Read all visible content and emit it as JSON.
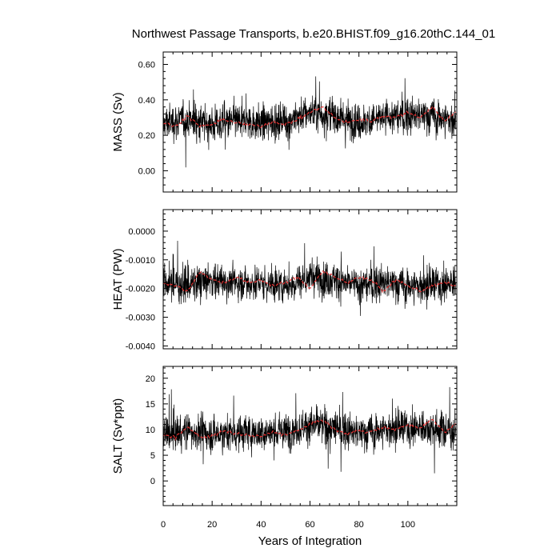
{
  "title": "Northwest Passage Transports, b.e20.BHIST.f09_g16.20thC.144_01",
  "chart_data": {
    "type": "line",
    "title": "Northwest Passage Transports, b.e20.BHIST.f09_g16.20thC.144_01",
    "xlabel": "Years of Integration",
    "xlim": [
      0,
      120
    ],
    "x_ticks": [
      0,
      20,
      40,
      60,
      80,
      100
    ],
    "x_tick_labels": [
      "0",
      "20",
      "40",
      "60",
      "80",
      "100"
    ],
    "grid": false,
    "legend": "none",
    "colors": {
      "monthly": "#000000",
      "smoothed": "#e03030"
    },
    "panels": [
      {
        "ylabel": "MASS (Sv)",
        "ylim": [
          -0.12,
          0.67
        ],
        "y_ticks": [
          0.0,
          0.2,
          0.4,
          0.6
        ],
        "y_tick_labels": [
          "0.00",
          "0.20",
          "0.40",
          "0.60"
        ],
        "series": [
          {
            "style": "monthly",
            "x": [
              0,
              10,
              20,
              30,
              40,
              50,
              60,
              70,
              80,
              90,
              100,
              110,
              119
            ],
            "y": [
              0.27,
              0.29,
              0.26,
              0.28,
              0.27,
              0.28,
              0.33,
              0.31,
              0.27,
              0.3,
              0.31,
              0.31,
              0.28
            ],
            "y_min_approx": -0.12,
            "y_max_approx": 0.67
          },
          {
            "style": "smoothed",
            "x": [
              0,
              5,
              10,
              15,
              20,
              25,
              30,
              35,
              40,
              45,
              50,
              55,
              60,
              65,
              70,
              75,
              80,
              85,
              90,
              95,
              100,
              105,
              110,
              115,
              119
            ],
            "y": [
              0.27,
              0.25,
              0.31,
              0.25,
              0.26,
              0.29,
              0.27,
              0.26,
              0.25,
              0.28,
              0.26,
              0.29,
              0.33,
              0.36,
              0.3,
              0.27,
              0.29,
              0.28,
              0.31,
              0.3,
              0.33,
              0.3,
              0.36,
              0.28,
              0.33
            ]
          }
        ]
      },
      {
        "ylabel": "HEAT (PW)",
        "ylim": [
          -0.0041,
          0.00075
        ],
        "y_ticks": [
          -0.004,
          -0.003,
          -0.002,
          -0.001,
          0.0
        ],
        "y_tick_labels": [
          "-0.0040",
          "-0.0030",
          "-0.0020",
          "-0.0010",
          "0.0000"
        ],
        "series": [
          {
            "style": "monthly",
            "x": [
              0,
              10,
              20,
              30,
              40,
              50,
              60,
              70,
              80,
              90,
              100,
              110,
              119
            ],
            "y": [
              -0.0018,
              -0.0019,
              -0.0017,
              -0.0018,
              -0.0018,
              -0.0019,
              -0.0016,
              -0.0017,
              -0.0019,
              -0.0018,
              -0.0019,
              -0.0019,
              -0.0018
            ],
            "y_min_approx": -0.0041,
            "y_max_approx": 0.0007
          },
          {
            "style": "smoothed",
            "x": [
              0,
              5,
              10,
              15,
              20,
              25,
              30,
              35,
              40,
              45,
              50,
              55,
              60,
              65,
              70,
              75,
              80,
              85,
              90,
              95,
              100,
              105,
              110,
              115,
              119
            ],
            "y": [
              -0.0018,
              -0.0019,
              -0.0021,
              -0.0014,
              -0.0017,
              -0.0018,
              -0.0016,
              -0.0018,
              -0.0017,
              -0.0019,
              -0.0018,
              -0.0016,
              -0.002,
              -0.0014,
              -0.0016,
              -0.0018,
              -0.0016,
              -0.0017,
              -0.0021,
              -0.0017,
              -0.0019,
              -0.0021,
              -0.0019,
              -0.0018,
              -0.0019
            ]
          }
        ]
      },
      {
        "ylabel": "SALT (Sv*ppt)",
        "ylim": [
          -4.8,
          22.3
        ],
        "y_ticks": [
          0,
          5,
          10,
          15,
          20
        ],
        "y_tick_labels": [
          "0",
          "5",
          "10",
          "15",
          "20"
        ],
        "series": [
          {
            "style": "monthly",
            "x": [
              0,
              10,
              20,
              30,
              40,
              50,
              60,
              70,
              80,
              90,
              100,
              110,
              119
            ],
            "y": [
              9.0,
              9.7,
              9.1,
              9.4,
              9.3,
              9.6,
              11.0,
              10.4,
              9.2,
              10.0,
              10.3,
              10.4,
              9.6
            ],
            "y_min_approx": -4.8,
            "y_max_approx": 22.3
          },
          {
            "style": "smoothed",
            "x": [
              0,
              5,
              10,
              15,
              20,
              25,
              30,
              35,
              40,
              45,
              50,
              55,
              60,
              65,
              70,
              75,
              80,
              85,
              90,
              95,
              100,
              105,
              110,
              115,
              119
            ],
            "y": [
              9.0,
              8.5,
              10.5,
              8.6,
              8.7,
              9.7,
              9.2,
              8.8,
              8.6,
              9.5,
              9.0,
              9.8,
              11.0,
              12.0,
              10.0,
              9.1,
              9.8,
              9.6,
              10.4,
              10.0,
              11.0,
              10.2,
              12.0,
              9.5,
              11.0
            ]
          }
        ]
      }
    ]
  }
}
